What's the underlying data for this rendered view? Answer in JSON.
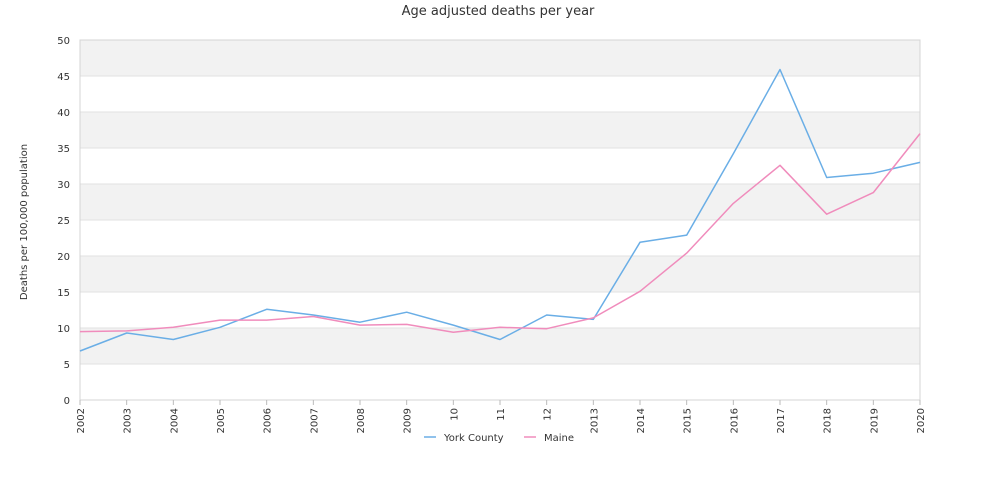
{
  "chart_data": {
    "type": "line",
    "title": "Age adjusted deaths per year",
    "xlabel": "",
    "ylabel": "Deaths per 100,000 population",
    "categories": [
      "2002",
      "2003",
      "2004",
      "2005",
      "2006",
      "2007",
      "2008",
      "2009",
      "10",
      "11",
      "12",
      "2013",
      "2014",
      "2015",
      "2016",
      "2017",
      "2018",
      "2019",
      "2020"
    ],
    "ylim": [
      0,
      50
    ],
    "yticks": [
      0,
      5,
      10,
      15,
      20,
      25,
      30,
      35,
      40,
      45,
      50
    ],
    "grid": "alternating horizontal bands",
    "legend_position": "bottom",
    "series": [
      {
        "name": "York County",
        "color": "#6aaee6",
        "values": [
          6.8,
          9.3,
          8.4,
          10.1,
          12.6,
          11.8,
          10.8,
          12.2,
          10.4,
          8.4,
          11.8,
          11.2,
          21.9,
          22.9,
          34.2,
          45.9,
          30.9,
          31.5,
          33.0
        ]
      },
      {
        "name": "Maine",
        "color": "#f08cbc",
        "values": [
          9.5,
          9.6,
          10.1,
          11.1,
          11.1,
          11.6,
          10.4,
          10.5,
          9.4,
          10.1,
          9.9,
          11.4,
          15.1,
          20.4,
          27.3,
          32.6,
          25.8,
          28.8,
          37.0
        ]
      }
    ]
  }
}
